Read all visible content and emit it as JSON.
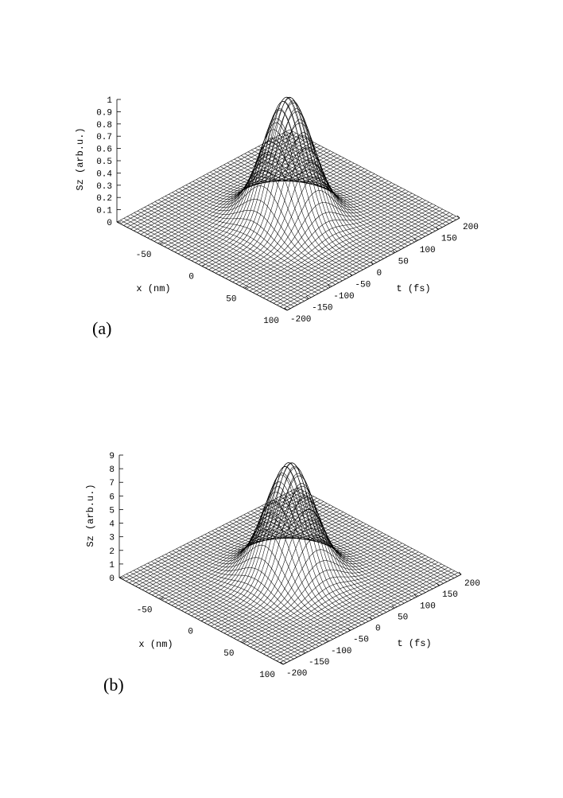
{
  "chart_data": [
    {
      "type": "surface",
      "panel_label": "(a)",
      "zlabel": "Sz (arb.u.)",
      "xlabel": "x (nm)",
      "ylabel": "t (fs)",
      "z_ticks": [
        "0",
        "0.1",
        "0.2",
        "0.3",
        "0.4",
        "0.5",
        "0.6",
        "0.7",
        "0.8",
        "0.9",
        "1"
      ],
      "x_ticks": [
        "-50",
        "0",
        "50",
        "100"
      ],
      "t_ticks": [
        "-200",
        "-150",
        "-100",
        "-50",
        "0",
        "50",
        "100",
        "150",
        "200"
      ],
      "xlim": [
        -100,
        100
      ],
      "tlim": [
        -200,
        200
      ],
      "zlim": [
        0,
        1
      ],
      "surface": {
        "peak_value": 1,
        "peak_x": 0,
        "peak_t": 0,
        "sigma_x": 22,
        "sigma_t": 40
      }
    },
    {
      "type": "surface",
      "panel_label": "(b)",
      "zlabel": "Sz (arb.u.)",
      "xlabel": "x (nm)",
      "ylabel": "t (fs)",
      "z_ticks": [
        "0",
        "1",
        "2",
        "3",
        "4",
        "5",
        "6",
        "7",
        "8",
        "9"
      ],
      "x_ticks": [
        "-50",
        "0",
        "50",
        "100"
      ],
      "t_ticks": [
        "-200",
        "-150",
        "-100",
        "-50",
        "0",
        "50",
        "100",
        "150",
        "200"
      ],
      "xlim": [
        -100,
        100
      ],
      "tlim": [
        -200,
        200
      ],
      "zlim": [
        0,
        9
      ],
      "surface": {
        "peak_value": 8.3,
        "peak_x": 0,
        "peak_t": 0,
        "sigma_x": 22,
        "sigma_t": 40
      }
    }
  ]
}
